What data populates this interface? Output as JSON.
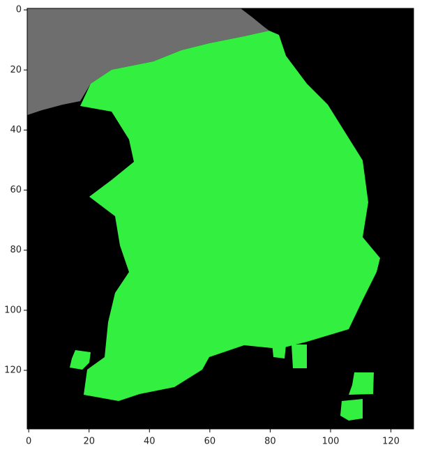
{
  "chart_data": {
    "type": "image",
    "xlim": [
      -0.5,
      127.5
    ],
    "ylim": [
      139.5,
      -0.5
    ],
    "xticks": [
      0,
      20,
      40,
      60,
      80,
      100,
      120
    ],
    "yticks": [
      0,
      20,
      40,
      60,
      80,
      100,
      120
    ]
  }
}
